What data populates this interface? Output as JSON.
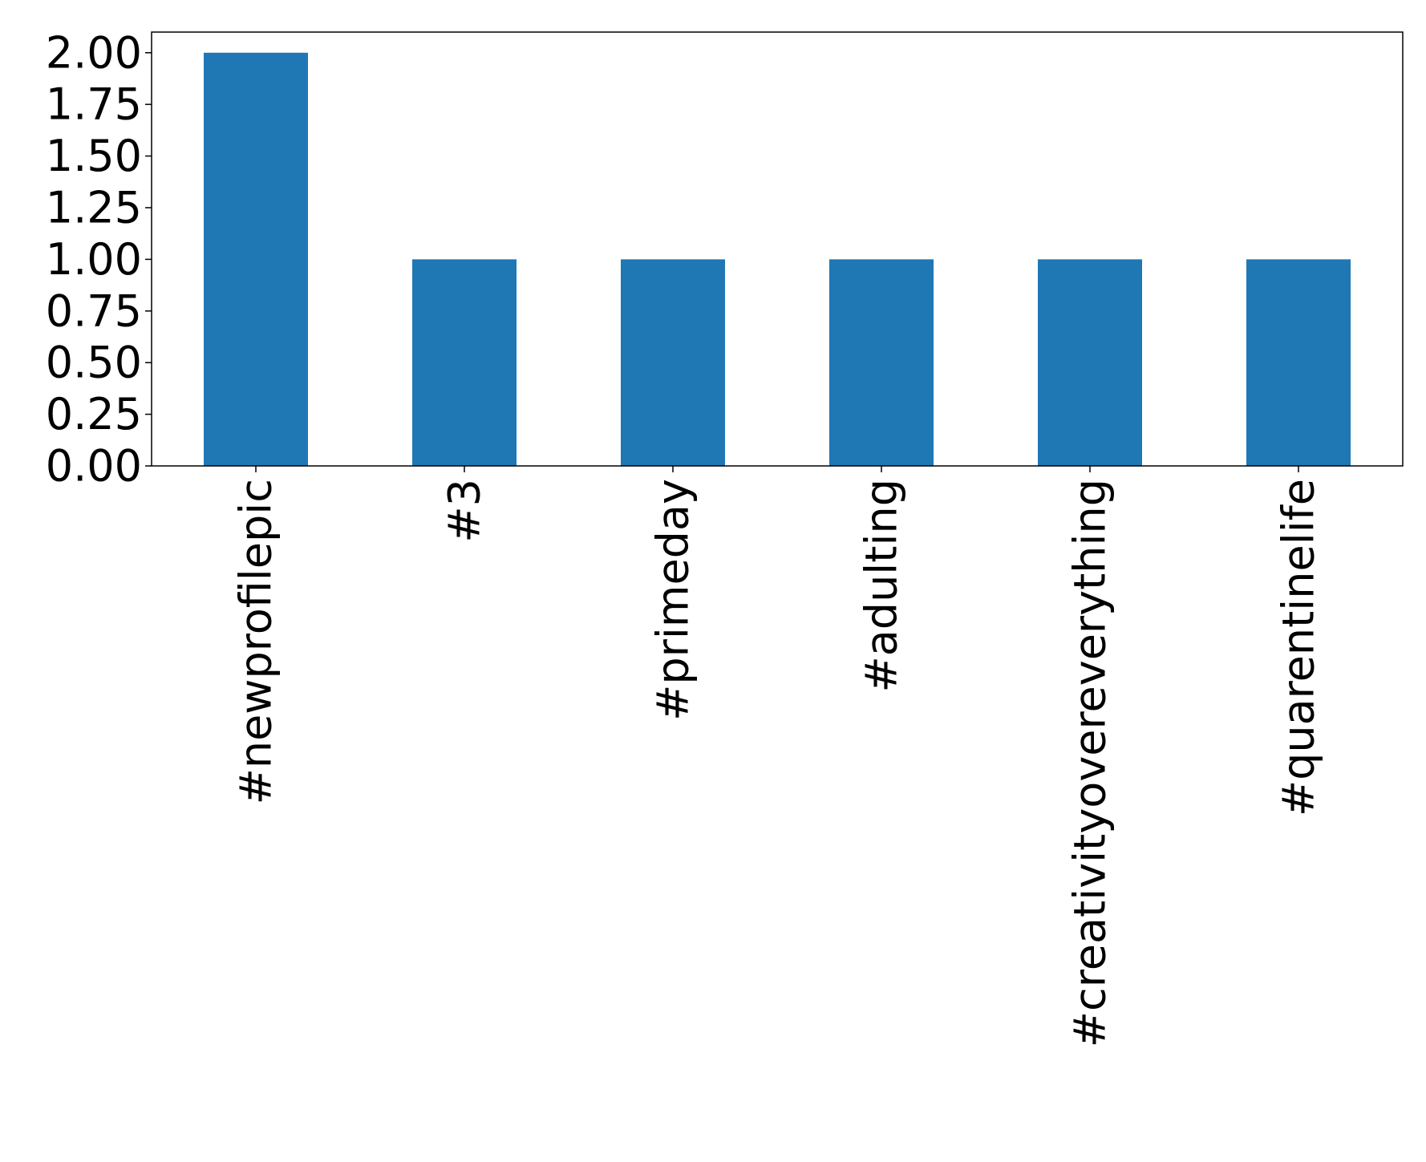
{
  "chart_data": {
    "type": "bar",
    "categories": [
      "#newprofilepic",
      "#3",
      "#primeday",
      "#adulting",
      "#creativityovereverything",
      "#quarentinelife"
    ],
    "values": [
      2,
      1,
      1,
      1,
      1,
      1
    ],
    "color": "#1f77b4",
    "ylim": [
      0,
      2.1
    ],
    "yticks": [
      {
        "value": 0,
        "label": "0.00"
      },
      {
        "value": 0.25,
        "label": "0.25"
      },
      {
        "value": 0.5,
        "label": "0.50"
      },
      {
        "value": 0.75,
        "label": "0.75"
      },
      {
        "value": 1,
        "label": "1.00"
      },
      {
        "value": 1.25,
        "label": "1.25"
      },
      {
        "value": 1.5,
        "label": "1.50"
      },
      {
        "value": 1.75,
        "label": "1.75"
      },
      {
        "value": 2,
        "label": "2.00"
      }
    ],
    "grid": false
  }
}
